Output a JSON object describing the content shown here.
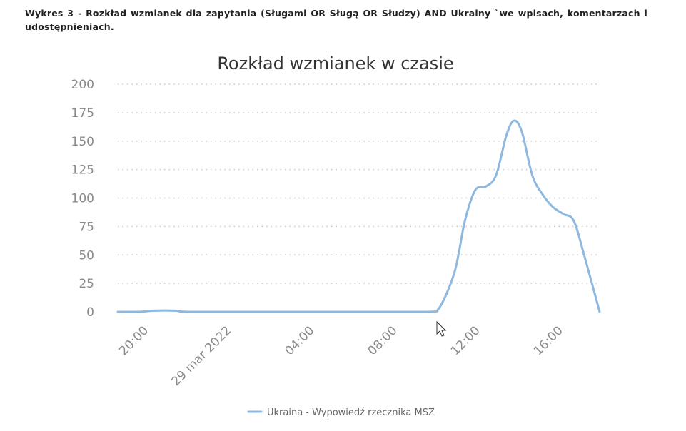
{
  "caption": "Wykres 3 - Rozkład wzmianek dla zapytania (Sługami OR Sługą OR Słudzy)  AND Ukrainy  `we wpisach, komentarzach i udostępnieniach.",
  "colors": {
    "series": "#8db8e0",
    "grid": "#c8c8c8",
    "tick": "#8a8a8a"
  },
  "chart_data": {
    "type": "line",
    "title": "Rozkład wzmianek w czasie",
    "xlabel": "",
    "ylabel": "",
    "x_axis_type": "time",
    "xlim": [
      "2022-03-28 18:30",
      "2022-03-29 17:45"
    ],
    "ylim": [
      0,
      200
    ],
    "yticks": [
      0,
      25,
      50,
      75,
      100,
      125,
      150,
      175,
      200
    ],
    "xticks": [
      {
        "t": "2022-03-28 20:00",
        "label": "20:00"
      },
      {
        "t": "2022-03-29 00:00",
        "label": "29 mar 2022"
      },
      {
        "t": "2022-03-29 04:00",
        "label": "04:00"
      },
      {
        "t": "2022-03-29 08:00",
        "label": "08:00"
      },
      {
        "t": "2022-03-29 12:00",
        "label": "12:00"
      },
      {
        "t": "2022-03-29 16:00",
        "label": "16:00"
      }
    ],
    "grid": true,
    "legend_position": "bottom",
    "series": [
      {
        "name": "Ukraina - Wypowiedź rzecznika MSZ",
        "color": "#8db8e0",
        "points": [
          [
            "2022-03-28 18:30",
            0
          ],
          [
            "2022-03-28 19:30",
            0
          ],
          [
            "2022-03-28 20:15",
            1
          ],
          [
            "2022-03-28 21:15",
            1
          ],
          [
            "2022-03-28 22:00",
            0
          ],
          [
            "2022-03-29 02:00",
            0
          ],
          [
            "2022-03-29 06:00",
            0
          ],
          [
            "2022-03-29 09:30",
            0
          ],
          [
            "2022-03-29 10:00",
            3
          ],
          [
            "2022-03-29 10:45",
            35
          ],
          [
            "2022-03-29 11:15",
            80
          ],
          [
            "2022-03-29 11:45",
            107
          ],
          [
            "2022-03-29 12:15",
            110
          ],
          [
            "2022-03-29 12:45",
            120
          ],
          [
            "2022-03-29 13:15",
            155
          ],
          [
            "2022-03-29 13:37",
            168
          ],
          [
            "2022-03-29 14:00",
            158
          ],
          [
            "2022-03-29 14:30",
            120
          ],
          [
            "2022-03-29 15:00",
            103
          ],
          [
            "2022-03-29 15:30",
            92
          ],
          [
            "2022-03-29 16:00",
            86
          ],
          [
            "2022-03-29 16:30",
            80
          ],
          [
            "2022-03-29 17:00",
            50
          ],
          [
            "2022-03-29 17:45",
            0
          ]
        ]
      }
    ]
  }
}
